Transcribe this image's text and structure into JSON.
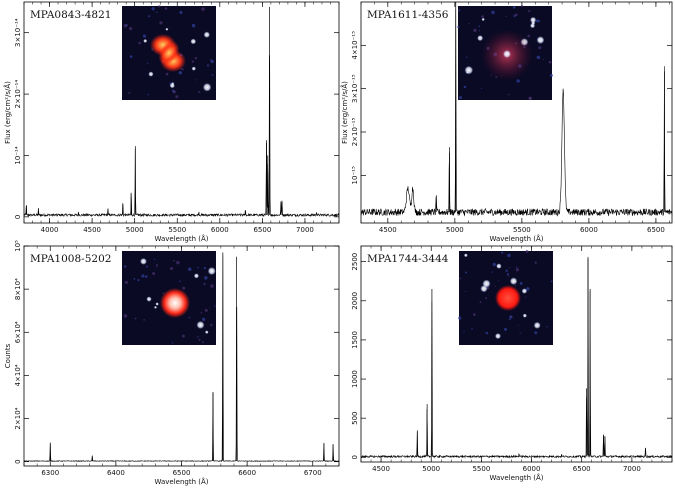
{
  "chart_data": [
    {
      "type": "line",
      "title": "MPA0843-4821",
      "xlabel": "Wavelength (Å)",
      "ylabel": "Flux (erg/cm²/s/Å)",
      "xlim": [
        3700,
        7400
      ],
      "ylim": [
        -1e-15,
        3.5e-14
      ],
      "xticks": [
        4000,
        4500,
        5000,
        5500,
        6000,
        6500,
        7000
      ],
      "yticks": [
        0,
        1e-14,
        2e-14,
        3e-14
      ],
      "ytick_labels": [
        "0",
        "10⁻¹⁴",
        "2×10⁻¹⁴",
        "3×10⁻¹⁴"
      ],
      "baseline": 3e-16,
      "noise": 2e-16,
      "lines": [
        {
          "x": 3727,
          "y": 1.8e-15
        },
        {
          "x": 3869,
          "y": 1e-15
        },
        {
          "x": 4340,
          "y": 5e-16
        },
        {
          "x": 4686,
          "y": 1.2e-15
        },
        {
          "x": 4861,
          "y": 2.2e-15
        },
        {
          "x": 4959,
          "y": 3.8e-15
        },
        {
          "x": 5007,
          "y": 1.12e-14
        },
        {
          "x": 5755,
          "y": 5e-16
        },
        {
          "x": 6300,
          "y": 1e-15
        },
        {
          "x": 6548,
          "y": 1.25e-14
        },
        {
          "x": 6563,
          "y": 1e-14
        },
        {
          "x": 6584,
          "y": 3.42e-14
        },
        {
          "x": 6717,
          "y": 2.2e-15
        },
        {
          "x": 6731,
          "y": 2.5e-15
        },
        {
          "x": 7136,
          "y": 6e-16
        }
      ]
    },
    {
      "type": "line",
      "title": "MPA1611-4356",
      "xlabel": "Wavelength (Å)",
      "ylabel": "Flux (erg/cm²/s/Å)",
      "xlim": [
        4300,
        6620
      ],
      "ylim": [
        -1e-16,
        5e-15
      ],
      "xticks": [
        4500,
        5000,
        5500,
        6000,
        6500
      ],
      "yticks": [
        1e-15,
        2e-15,
        3e-15,
        4e-15
      ],
      "ytick_labels": [
        "10⁻¹⁵",
        "2×10⁻¹⁵",
        "3×10⁻¹⁵",
        "4×10⁻¹⁵"
      ],
      "baseline": 1.5e-16,
      "noise": 8e-17,
      "lines": [
        {
          "x": 4650,
          "y": 5.5e-16,
          "width": 14
        },
        {
          "x": 4686,
          "y": 5.5e-16,
          "width": 10
        },
        {
          "x": 4861,
          "y": 5e-16
        },
        {
          "x": 4959,
          "y": 1.65e-15
        },
        {
          "x": 5007,
          "y": 5e-15
        },
        {
          "x": 5808,
          "y": 2.85e-15,
          "width": 12
        },
        {
          "x": 6563,
          "y": 3.4e-15
        }
      ]
    },
    {
      "type": "line",
      "title": "MPA1008-5202",
      "xlabel": "Wavelength (Å)",
      "ylabel": "Counts",
      "xlim": [
        6260,
        6740
      ],
      "ylim": [
        -2000,
        100000
      ],
      "xticks": [
        6300,
        6400,
        6500,
        6600,
        6700
      ],
      "yticks": [
        0,
        20000,
        40000,
        60000,
        80000,
        100000
      ],
      "ytick_labels": [
        "0",
        "2×10⁴",
        "4×10⁴",
        "6×10⁴",
        "8×10⁴",
        "10⁵"
      ],
      "baseline": 300,
      "noise": 150,
      "lines": [
        {
          "x": 6300,
          "y": 8500
        },
        {
          "x": 6364,
          "y": 2500
        },
        {
          "x": 6548,
          "y": 32000
        },
        {
          "x": 6563,
          "y": 97000
        },
        {
          "x": 6584,
          "y": 95000
        },
        {
          "x": 6717,
          "y": 8500
        },
        {
          "x": 6731,
          "y": 8000
        }
      ]
    },
    {
      "type": "line",
      "title": "MPA1744-3444",
      "xlabel": "Wavelength (Å)",
      "ylabel": "",
      "xlim": [
        4300,
        7400
      ],
      "ylim": [
        -60,
        2700
      ],
      "xticks": [
        4500,
        5000,
        5500,
        6000,
        6500,
        7000
      ],
      "yticks": [
        0,
        500,
        1000,
        1500,
        2000,
        2500
      ],
      "ytick_labels": [
        "0",
        "500",
        "1000",
        "1500",
        "2000",
        "2500"
      ],
      "baseline": 10,
      "noise": 12,
      "lines": [
        {
          "x": 4861,
          "y": 330
        },
        {
          "x": 4959,
          "y": 680
        },
        {
          "x": 5007,
          "y": 2150
        },
        {
          "x": 5876,
          "y": 40
        },
        {
          "x": 6300,
          "y": 30
        },
        {
          "x": 6548,
          "y": 880
        },
        {
          "x": 6563,
          "y": 2540
        },
        {
          "x": 6584,
          "y": 2150
        },
        {
          "x": 6717,
          "y": 290
        },
        {
          "x": 6731,
          "y": 270
        },
        {
          "x": 7136,
          "y": 120
        }
      ]
    }
  ],
  "insets": [
    {
      "object": "MPA0843-4821",
      "description_icon": "red-bipolar-nebula-image",
      "blob_color": "#ff4020",
      "core_color": "#ffb040"
    },
    {
      "object": "MPA1611-4356",
      "description_icon": "faint-red-nebula-image",
      "blob_color": "#d03050",
      "core_color": "#ffffff"
    },
    {
      "object": "MPA1008-5202",
      "description_icon": "red-round-nebula-image",
      "blob_color": "#ff3020",
      "core_color": "#ffffff"
    },
    {
      "object": "MPA1744-3444",
      "description_icon": "red-compact-nebula-image",
      "blob_color": "#ff2020",
      "core_color": "#ff6040"
    }
  ],
  "colors": {
    "spectrum": "#000000",
    "background": "#ffffff"
  }
}
